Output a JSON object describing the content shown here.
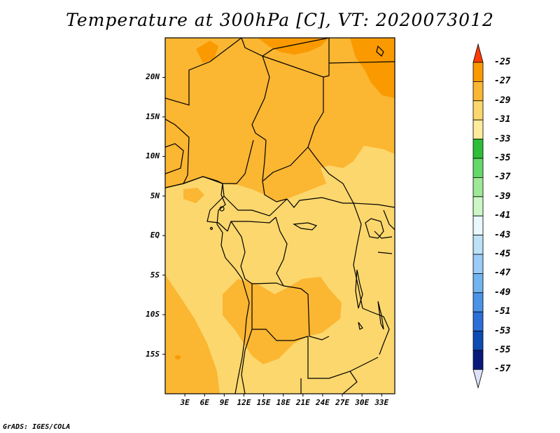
{
  "title": "Temperature at 300hPa [C], VT: 2020073012",
  "credit": "GrADS: IGES/COLA",
  "map": {
    "lon_range": [
      0,
      35
    ],
    "lat_range": [
      -20,
      25
    ],
    "lat_ticks": [
      "20N",
      "15N",
      "10N",
      "5N",
      "EQ",
      "5S",
      "10S",
      "15S"
    ],
    "lat_values": [
      20,
      15,
      10,
      5,
      0,
      -5,
      -10,
      -15
    ],
    "lon_ticks": [
      "3E",
      "6E",
      "9E",
      "12E",
      "15E",
      "18E",
      "21E",
      "24E",
      "27E",
      "30E",
      "33E"
    ],
    "lon_values": [
      3,
      6,
      9,
      12,
      15,
      18,
      21,
      24,
      27,
      30,
      33
    ]
  },
  "colorbar": {
    "labels": [
      "-25",
      "-27",
      "-29",
      "-31",
      "-33",
      "-35",
      "-37",
      "-39",
      "-41",
      "-43",
      "-45",
      "-47",
      "-49",
      "-51",
      "-53",
      "-55",
      "-57"
    ],
    "colors": [
      "#ff5a10",
      "#fa9a00",
      "#fbb632",
      "#fcd76d",
      "#fdec9b",
      "#2fbe3a",
      "#64d96a",
      "#9ee896",
      "#ccf6c6",
      "#e8f8fd",
      "#bde2f8",
      "#99cdf7",
      "#72b4ef",
      "#4a94e6",
      "#2b6fd8",
      "#0c4cb4",
      "#0a1a7a"
    ],
    "top_arrow_color": "#ff3c00",
    "bottom_arrow_color": "#dde2f6"
  }
}
